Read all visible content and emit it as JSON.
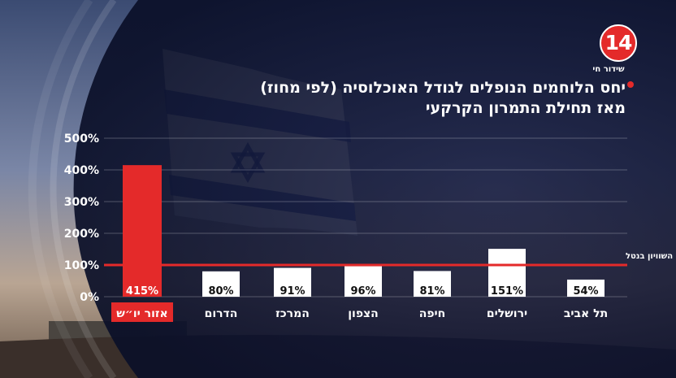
{
  "header": {
    "logo_text": "14",
    "live_label": "שידור חי",
    "title_line1": "יחס הלוחמים הנופלים לגודל האוכלוסיה (לפי מחוז)",
    "title_line2": "מאז תחילת התמרון הקרקעי"
  },
  "colors": {
    "accent": "#e42a2a",
    "bar": "#ffffff",
    "highlight_bar": "#e42a2a",
    "reference_line": "#e42a2a"
  },
  "chart_data": {
    "type": "bar",
    "title": "יחס הלוחמים הנופלים לגודל האוכלוסיה (לפי מחוז) מאז תחילת התמרון הקרקעי",
    "categories": [
      "אזור יו״ש",
      "הדרום",
      "המרכז",
      "הצפון",
      "חיפה",
      "ירושלים",
      "תל אביב"
    ],
    "values": [
      415,
      80,
      91,
      96,
      81,
      151,
      54
    ],
    "value_labels": [
      "415%",
      "80%",
      "91%",
      "96%",
      "81%",
      "151%",
      "54%"
    ],
    "highlight_index": 0,
    "ylim": [
      0,
      500
    ],
    "yticks": [
      0,
      100,
      200,
      300,
      400,
      500
    ],
    "ytick_labels": [
      "0%",
      "100%",
      "200%",
      "300%",
      "400%",
      "500%"
    ],
    "grid": true,
    "reference_line": {
      "value": 100,
      "label": "קו השוויון בנטל"
    }
  }
}
